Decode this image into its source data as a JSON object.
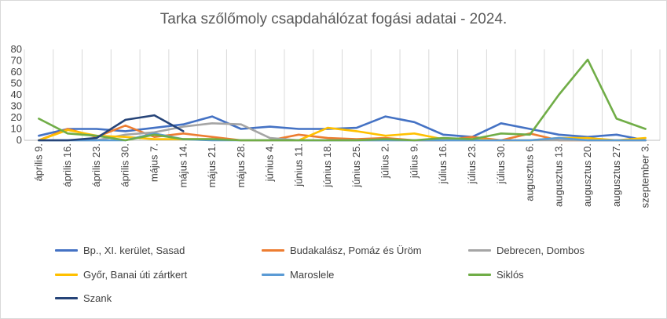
{
  "chart_data": {
    "type": "line",
    "title": "Tarka szőlőmoly csapdahálózat fogási adatai - 2024.",
    "xlabel": "",
    "ylabel": "",
    "ylim": [
      0,
      80
    ],
    "yticks": [
      0,
      10,
      20,
      30,
      40,
      50,
      60,
      70,
      80
    ],
    "grid": "vertical",
    "legend": "bottom",
    "categories": [
      "április 9.",
      "április 16.",
      "április 23.",
      "április 30.",
      "május 7.",
      "május 14.",
      "május 21.",
      "május 28.",
      "június 4.",
      "június 11.",
      "június 18.",
      "június 25.",
      "július 2.",
      "július 9.",
      "július 16.",
      "július 23.",
      "július 30.",
      "augusztus 6.",
      "augusztus 13.",
      "augusztus 20.",
      "augusztus 27.",
      "szeptember 3."
    ],
    "series": [
      {
        "name": "Bp., XI. kerület, Sasad",
        "color": "#4472C4",
        "values": [
          4,
          10,
          10,
          8,
          11,
          14,
          21,
          10,
          12,
          10,
          10,
          11,
          21,
          16,
          5,
          3,
          15,
          10,
          5,
          3,
          5,
          0
        ]
      },
      {
        "name": "Budakalász, Pomáz és Üröm",
        "color": "#ED7D31",
        "values": [
          0,
          10,
          3,
          13,
          3,
          6,
          3,
          0,
          0,
          5,
          2,
          1,
          2,
          0,
          0,
          3,
          0,
          6,
          0,
          0,
          0,
          0
        ]
      },
      {
        "name": "Debrecen, Dombos",
        "color": "#A5A5A5",
        "values": [
          0,
          0,
          0,
          5,
          7,
          12,
          15,
          14,
          2,
          0,
          0,
          0,
          0,
          0,
          0,
          0,
          0,
          0,
          0,
          0,
          0,
          0
        ]
      },
      {
        "name": "Győr, Banai úti zártkert",
        "color": "#FFC000",
        "values": [
          0,
          9,
          4,
          3,
          1,
          1,
          1,
          0,
          0,
          0,
          11,
          8,
          4,
          6,
          1,
          1,
          0,
          0,
          2,
          2,
          0,
          2
        ]
      },
      {
        "name": "Maroslele",
        "color": "#5B9BD5",
        "values": [
          0,
          0,
          0,
          0,
          6,
          1,
          0,
          0,
          0,
          0,
          0,
          0,
          0,
          0,
          0,
          0,
          0,
          0,
          2,
          0,
          0,
          0
        ]
      },
      {
        "name": "Siklós",
        "color": "#70AD47",
        "values": [
          19,
          6,
          4,
          0,
          5,
          1,
          1,
          0,
          0,
          0,
          0,
          0,
          1,
          0,
          2,
          1,
          6,
          5,
          40,
          71,
          19,
          10
        ]
      },
      {
        "name": "Szank",
        "color": "#264478",
        "values": [
          0,
          0,
          2,
          18,
          22,
          8,
          null,
          null,
          null,
          null,
          null,
          null,
          null,
          null,
          null,
          null,
          null,
          null,
          null,
          null,
          null,
          null
        ]
      }
    ]
  }
}
